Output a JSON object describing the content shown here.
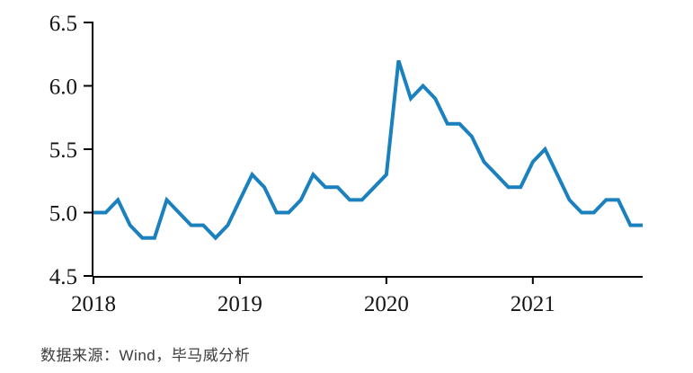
{
  "page": {
    "background_color": "#ffffff"
  },
  "chart_data": {
    "type": "line",
    "title": "",
    "xlabel": "",
    "ylabel": "",
    "grid": false,
    "legend": false,
    "axis_color": "#000000",
    "tick_label_color": "#141414",
    "x": [
      "2018-01",
      "2018-02",
      "2018-03",
      "2018-04",
      "2018-05",
      "2018-06",
      "2018-07",
      "2018-08",
      "2018-09",
      "2018-10",
      "2018-11",
      "2018-12",
      "2019-01",
      "2019-02",
      "2019-03",
      "2019-04",
      "2019-05",
      "2019-06",
      "2019-07",
      "2019-08",
      "2019-09",
      "2019-10",
      "2019-11",
      "2019-12",
      "2020-01",
      "2020-02",
      "2020-03",
      "2020-04",
      "2020-05",
      "2020-06",
      "2020-07",
      "2020-08",
      "2020-09",
      "2020-10",
      "2020-11",
      "2020-12",
      "2021-01",
      "2021-02",
      "2021-03",
      "2021-04",
      "2021-05",
      "2021-06",
      "2021-07",
      "2021-08",
      "2021-09",
      "2021-10"
    ],
    "series": [
      {
        "name": "",
        "color": "#1B80BE",
        "stroke_width": 4,
        "values": [
          5.0,
          5.0,
          5.1,
          4.9,
          4.8,
          4.8,
          5.1,
          5.0,
          4.9,
          4.9,
          4.8,
          4.9,
          5.1,
          5.3,
          5.2,
          5.0,
          5.0,
          5.1,
          5.3,
          5.2,
          5.2,
          5.1,
          5.1,
          5.2,
          5.3,
          6.2,
          5.9,
          6.0,
          5.9,
          5.7,
          5.7,
          5.6,
          5.4,
          5.3,
          5.2,
          5.2,
          5.4,
          5.5,
          5.3,
          5.1,
          5.0,
          5.0,
          5.1,
          5.1,
          4.9,
          4.9
        ]
      }
    ],
    "ylim": [
      4.5,
      6.5
    ],
    "yticks": {
      "values": [
        4.5,
        5.0,
        5.5,
        6.0,
        6.5
      ],
      "labels": [
        "4.5",
        "5.0",
        "5.5",
        "6.0",
        "6.5"
      ]
    },
    "xticks": {
      "month_indices": [
        0,
        12,
        24,
        36
      ],
      "labels": [
        "2018",
        "2019",
        "2020",
        "2021"
      ]
    }
  },
  "footer": {
    "source_note": "数据来源：Wind，毕马威分析"
  }
}
